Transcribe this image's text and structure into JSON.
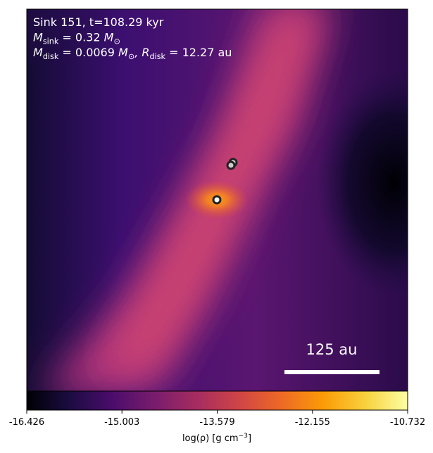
{
  "chart_data": {
    "type": "density-map",
    "annotations": [
      [
        {
          "text": "Sink 151, t=108.29 kyr"
        }
      ],
      [
        {
          "text": "M"
        },
        {
          "text": "sink",
          "sub": true
        },
        {
          "text": " = 0.32 "
        },
        {
          "text": "M"
        },
        {
          "text": "⊙",
          "sub": true
        }
      ],
      [
        {
          "text": "M"
        },
        {
          "text": "disk",
          "sub": true
        },
        {
          "text": " = 0.0069 "
        },
        {
          "text": "M"
        },
        {
          "text": "⊙",
          "sub": true
        },
        {
          "text": ", R"
        },
        {
          "text": "disk",
          "sub": true
        },
        {
          "text": " = 12.27 au"
        }
      ]
    ],
    "scale_bar_label": "125 au",
    "colorbar": {
      "colormap": "inferno",
      "xlim": [
        -16.426,
        -10.732
      ],
      "xticks": [
        -16.426,
        -15.003,
        -13.579,
        -12.155,
        -10.732
      ],
      "label": [
        {
          "text": "log(ρ) [g cm"
        },
        {
          "text": "−3",
          "sup": true
        },
        {
          "text": "]"
        }
      ]
    }
  }
}
